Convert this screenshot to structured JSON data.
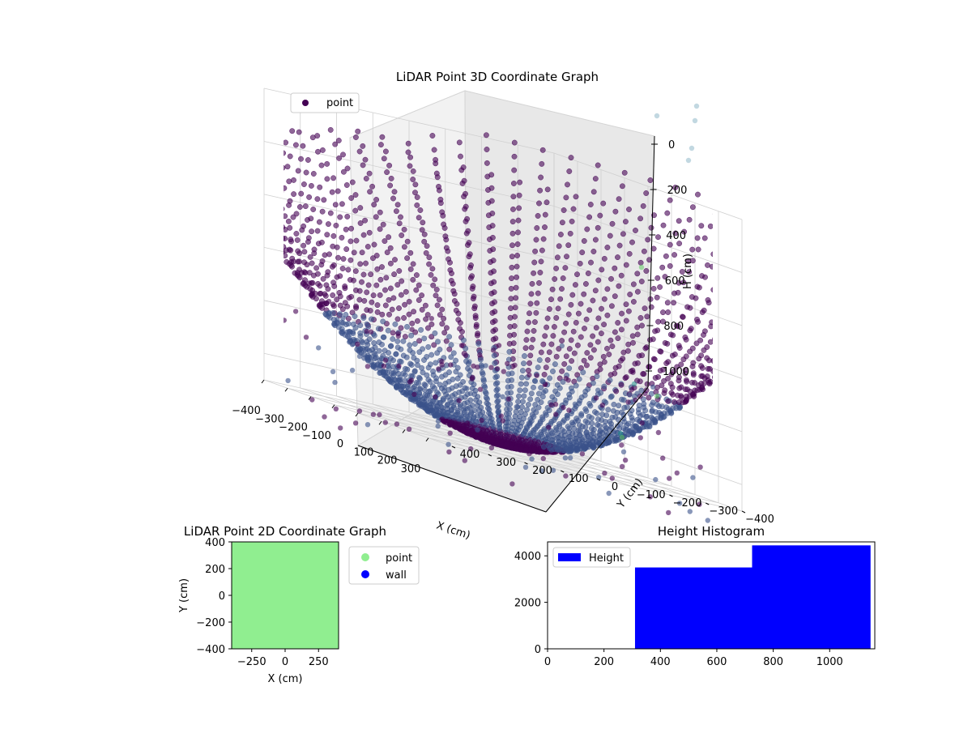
{
  "figure": {
    "background": "#ffffff"
  },
  "chart_data": [
    {
      "type": "scatter",
      "projection": "3d",
      "title": "LiDAR Point 3D Coordinate Graph",
      "xlabel": "X (cm)",
      "ylabel": "Y (cm)",
      "zlabel": "H (cm)",
      "xlim": [
        -400,
        400
      ],
      "ylim": [
        -400,
        400
      ],
      "zlim": [
        -1100,
        0
      ],
      "x_ticks": [
        "−400",
        "−300",
        "−200",
        "−100",
        "0",
        "100",
        "200",
        "300"
      ],
      "y_ticks": [
        "400",
        "300",
        "200",
        "100",
        "0",
        "−100",
        "−200",
        "−300",
        "−400"
      ],
      "z_ticks": [
        "0",
        "200",
        "400",
        "600",
        "800",
        "1000"
      ],
      "z_axis_label_display": "H (cm)",
      "grid": true,
      "legend": {
        "position": "upper-left",
        "entries": [
          {
            "label": "point",
            "color": "#440154"
          }
        ]
      },
      "colormap": "viridis",
      "point_colors": {
        "deep": "#440154",
        "mid": "#3b528b",
        "teal": "#21918c",
        "green": "#5ec962",
        "light": "#8fb8c9"
      },
      "pattern": {
        "description": "points lie along radial scan lines forming a bowl",
        "rings_cm": [
          100,
          150,
          200,
          250,
          300,
          350,
          400
        ],
        "scan_lines": 72
      }
    },
    {
      "type": "scatter",
      "title": "LiDAR Point 2D Coordinate Graph",
      "xlabel": "X (cm)",
      "ylabel": "Y (cm)",
      "xlim": [
        -400,
        400
      ],
      "ylim": [
        -400,
        400
      ],
      "x_ticks": [
        -250,
        0,
        250
      ],
      "y_ticks": [
        400,
        200,
        0,
        -200,
        -400
      ],
      "fill_color": "#90ee90",
      "legend": {
        "position": "outside-right",
        "entries": [
          {
            "label": "point",
            "color": "#90ee90"
          },
          {
            "label": "wall",
            "color": "#0000ff"
          }
        ]
      }
    },
    {
      "type": "bar",
      "title": "Height Histogram",
      "xlabel": "",
      "ylabel": "",
      "xlim": [
        0,
        1160
      ],
      "ylim": [
        0,
        4600
      ],
      "x_ticks": [
        0,
        200,
        400,
        600,
        800,
        1000
      ],
      "y_ticks": [
        0,
        2000,
        4000
      ],
      "bars": [
        {
          "x_start": 310,
          "x_end": 725,
          "value": 3500
        },
        {
          "x_start": 725,
          "x_end": 1145,
          "value": 4450
        }
      ],
      "color": "#0000ff",
      "legend": {
        "position": "upper-left",
        "entries": [
          {
            "label": "Height",
            "color": "#0000ff"
          }
        ]
      }
    }
  ]
}
